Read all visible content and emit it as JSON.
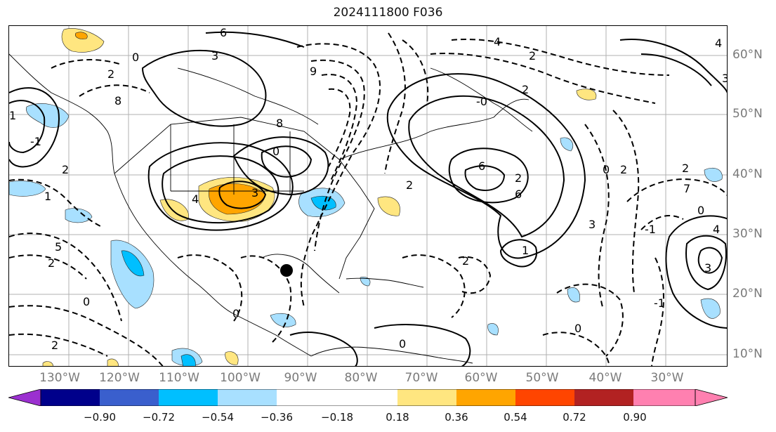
{
  "title": "2024111800 F036",
  "lon_labels": [
    "130°W",
    "120°W",
    "110°W",
    "100°W",
    "90°W",
    "80°W",
    "70°W",
    "60°W",
    "50°W",
    "40°W",
    "30°W"
  ],
  "lat_labels": [
    "60°N",
    "50°N",
    "40°N",
    "30°N",
    "20°N",
    "10°N"
  ],
  "colorbar": {
    "ticks": [
      "−0.90",
      "−0.72",
      "−0.54",
      "−0.36",
      "−0.18",
      "0.18",
      "0.36",
      "0.54",
      "0.72",
      "0.90"
    ],
    "colors": [
      "#9b30d0",
      "#00008b",
      "#3a5fcd",
      "#00bfff",
      "#a8e0ff",
      "#ffffff",
      "#ffe680",
      "#ffa500",
      "#ff4500",
      "#b22222",
      "#ff80b0"
    ]
  },
  "contour_labels": [
    "6",
    "4",
    "3",
    "2",
    "0",
    "9",
    "2",
    "4",
    "2",
    "1",
    "8",
    "-1",
    "6",
    "8",
    "3",
    "2",
    "1",
    "2",
    "6",
    "4",
    "3",
    "0",
    "7",
    "2",
    "3",
    "4",
    "3",
    "1",
    "5",
    "2",
    "2",
    "0",
    "0",
    "-1",
    "0",
    "0",
    "2",
    "0",
    "0",
    "-1",
    "2",
    "2",
    "-0",
    "0"
  ],
  "marker": "black-dot"
}
